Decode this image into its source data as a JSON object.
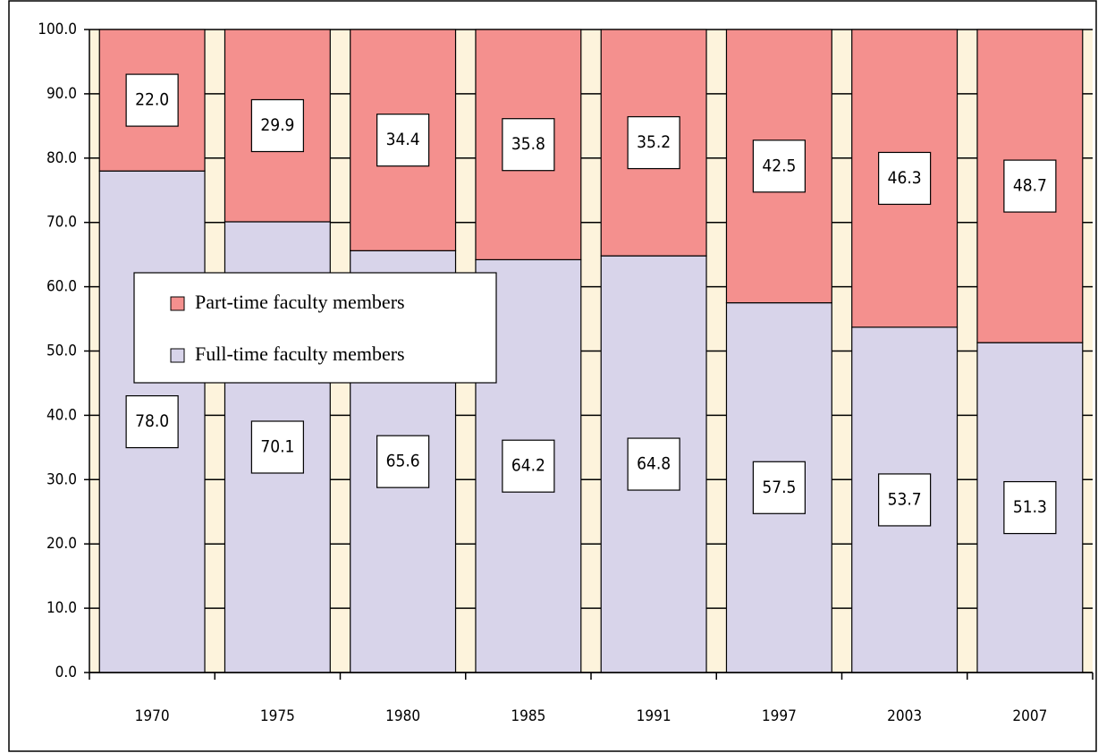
{
  "chart_data": {
    "type": "stacked_bar",
    "categories": [
      "1970",
      "1975",
      "1980",
      "1985",
      "1991",
      "1997",
      "2003",
      "2007"
    ],
    "series": [
      {
        "name": "Full-time faculty members",
        "color": "#d8d4ea",
        "values": [
          78.0,
          70.1,
          65.6,
          64.2,
          64.8,
          57.5,
          53.7,
          51.3
        ],
        "value_labels": [
          "78.0",
          "70.1",
          "65.6",
          "64.2",
          "64.8",
          "57.5",
          "53.7",
          "51.3"
        ]
      },
      {
        "name": "Part-time faculty members",
        "color": "#f4908e",
        "values": [
          22.0,
          29.9,
          34.4,
          35.8,
          35.2,
          42.5,
          46.3,
          48.7
        ],
        "value_labels": [
          "22.0",
          "29.9",
          "34.4",
          "35.8",
          "35.2",
          "42.5",
          "46.3",
          "48.7"
        ]
      }
    ],
    "ylim": [
      0,
      100
    ],
    "yticks": [
      {
        "value": 0,
        "label": "0.0"
      },
      {
        "value": 10,
        "label": "10.0"
      },
      {
        "value": 20,
        "label": "20.0"
      },
      {
        "value": 30,
        "label": "30.0"
      },
      {
        "value": 40,
        "label": "40.0"
      },
      {
        "value": 50,
        "label": "50.0"
      },
      {
        "value": 60,
        "label": "60.0"
      },
      {
        "value": 70,
        "label": "70.0"
      },
      {
        "value": 80,
        "label": "80.0"
      },
      {
        "value": 90,
        "label": "90.0"
      },
      {
        "value": 100,
        "label": "100.0"
      }
    ],
    "grid": true
  }
}
